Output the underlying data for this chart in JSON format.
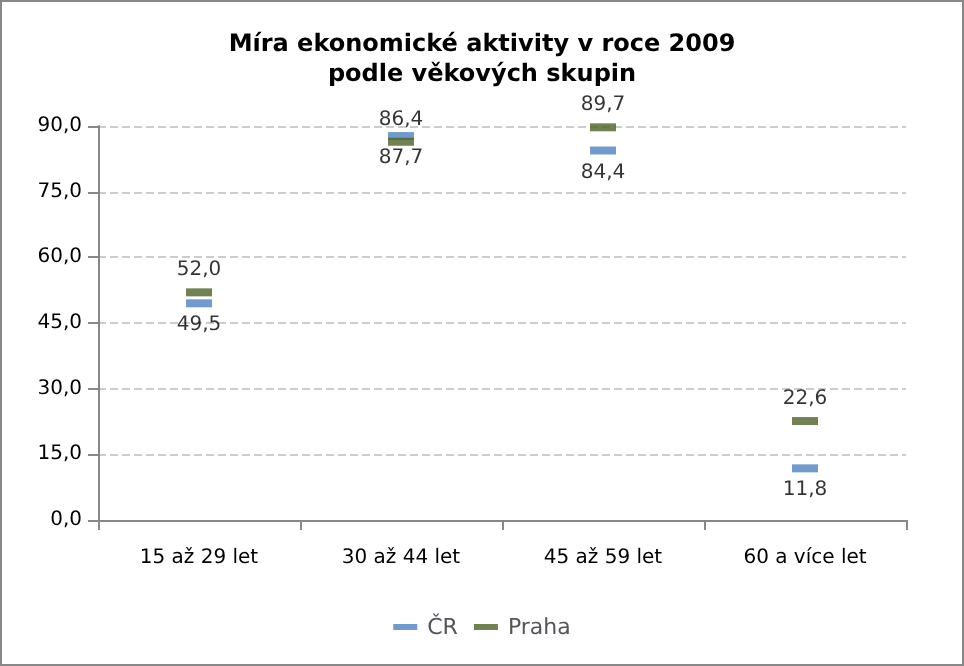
{
  "chart_data": {
    "type": "scatter",
    "title": "Míra ekonomické aktivity v roce 2009\npodle věkových skupin",
    "categories": [
      "15 až 29 let",
      "30 až 44 let",
      "45 až 59 let",
      "60 a více let"
    ],
    "series": [
      {
        "name": "ČR",
        "color": "#4f81bd",
        "values": [
          49.5,
          87.7,
          84.4,
          11.8
        ],
        "value_labels": [
          "49,5",
          "87,7",
          "84,4",
          "11,8"
        ]
      },
      {
        "name": "Praha",
        "color": "#4f6228",
        "values": [
          52.0,
          86.4,
          89.7,
          22.6
        ],
        "value_labels": [
          "52,0",
          "86,4",
          "89,7",
          "22,6"
        ]
      }
    ],
    "ylim": [
      0,
      90
    ],
    "yticks": [
      {
        "value": 0,
        "label": "0,0"
      },
      {
        "value": 15,
        "label": "15,0"
      },
      {
        "value": 30,
        "label": "30,0"
      },
      {
        "value": 45,
        "label": "45,0"
      },
      {
        "value": 60,
        "label": "60,0"
      },
      {
        "value": 75,
        "label": "75,0"
      },
      {
        "value": 90,
        "label": "90,0"
      }
    ],
    "grid": "y",
    "legend": "bottom",
    "marker": "square"
  }
}
